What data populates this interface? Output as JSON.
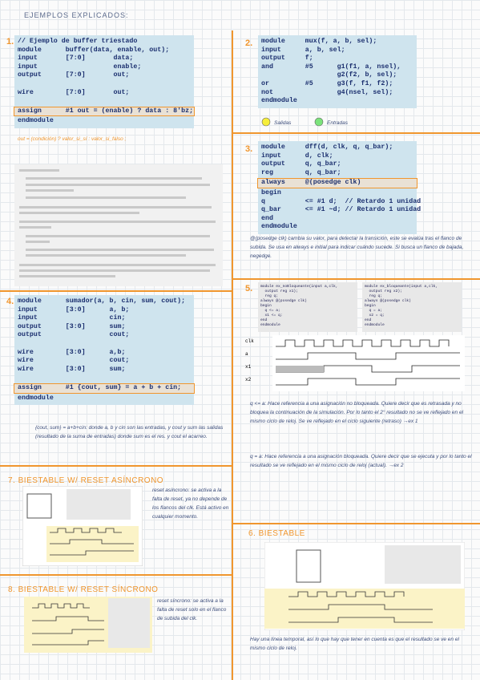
{
  "title": "EJEMPLOS EXPLICADOS:",
  "s1": {
    "number": "1.",
    "code": [
      "// Ejemplo de buffer triestado",
      "module      buffer(data, enable, out);",
      "input       [7:0]       data;",
      "input                   enable;",
      "output      [7:0]       out;",
      "",
      "wire        [7:0]       out;",
      "",
      "assign      #1 out = (enable) ? data : 8'bz;",
      "endmodule"
    ],
    "note": "out = (condición) ? valor_si_sí : valor_si_falso ;"
  },
  "s4": {
    "number": "4.",
    "code": [
      "module      sumador(a, b, cin, sum, cout);",
      "input       [3:0]      a, b;",
      "input                  cin;",
      "output      [3:0]      sum;",
      "output                 cout;",
      "",
      "wire        [3:0]      a,b;",
      "wire                   cout;",
      "wire        [3:0]      sum;",
      "",
      "assign      #1 {cout, sum} = a + b + cin;",
      "endmodule"
    ],
    "note": "{cout, sum} = a+b+cin: donde a, b y cin son las entradas, y cout y sum las salidas (resultado de la suma de entradas) donde sum es el res. y cout el acarreo."
  },
  "s7": {
    "heading": "7. BIESTABLE W/ RESET ASÍNCRONO",
    "note": "reset asíncrono: se activa a la falta de reset, ya no depende de los flancos del clk. Está activo en cualquier momento."
  },
  "s8": {
    "heading": "8. BIESTABLE W/ RESET SÍNCRONO",
    "note": "reset síncrono: se activa a la falta de reset solo en el flanco de subida del clk."
  },
  "s2": {
    "number": "2.",
    "code": [
      "module     mux(f, a, b, sel);",
      "input      a, b, sel;",
      "output     f;",
      "and        #5      g1(f1, a, nsel),",
      "                   g2(f2, b, sel);",
      "or         #5      g3(f, f1, f2);",
      "not                g4(nsel, sel);",
      "endmodule"
    ],
    "legend": [
      "Salidas",
      "Entradas"
    ]
  },
  "s3": {
    "number": "3.",
    "code": [
      "module     dff(d, clk, q, q_bar);",
      "input      d, clk;",
      "output     q, q_bar;",
      "reg        q, q_bar;",
      "always     @(posedge clk)",
      "begin",
      "q          <= #1 d;  // Retardo 1 unidad",
      "q_bar      <= #1 ~d; // Retardo 1 unidad",
      "end",
      "endmodule"
    ],
    "note": "@(posedge clk) cambia su valor, para detectar la transición, este se evalúa tras el flanco de subida. Se usa en always e initial para indicar cuándo sucede. Si busca un flanco de bajada, negedge."
  },
  "s5": {
    "number": "5.",
    "ex1": [
      "module ex_noBloqueante(input a,clk,",
      "  output reg x1);",
      "  reg q;",
      "always @(posedge clk)",
      "begin",
      "  q <= a;",
      "  x1 <= q;",
      "end",
      "endmodule"
    ],
    "ex2": [
      "module ex_bloqueante(input a,clk,",
      "  output reg x2);",
      "  reg q;",
      "always @(posedge clk)",
      "begin",
      "  q = a;",
      "  x2 = q;",
      "end",
      "endmodule"
    ],
    "signals": [
      "clk",
      "a",
      "x1",
      "x2"
    ],
    "note1": "q <= a: Hace referencia a una asignación no bloqueada. Quiere decir que es retrasada y no bloquea la continuación de la simulación. Por lo tanto el 2° resultado no se ve reflejado en el mismo ciclo de reloj. Se ve reflejado en el ciclo siguiente (retraso) →ex 1",
    "note2": "q = a: Hace referencia a una asignación bloqueada. Quiere decir que se ejecuta y por lo tanto el resultado se ve reflejado en el mismo ciclo de reloj (actual). →ex 2"
  },
  "s6": {
    "heading": "6. BIESTABLE",
    "note": "Hay una línea temporal, así lo que hay que tener en cuenta es que el resultado se ve en el mismo ciclo de reloj."
  }
}
